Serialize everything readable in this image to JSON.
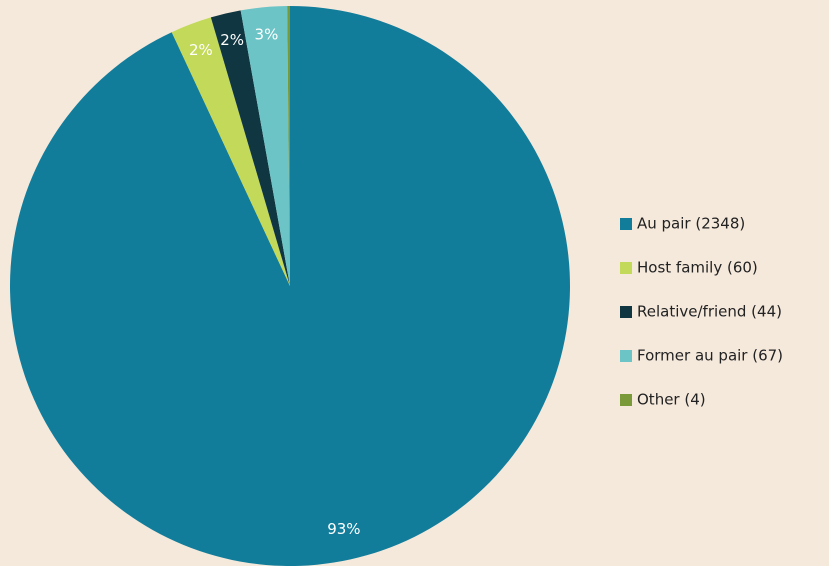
{
  "chart_data": {
    "type": "pie",
    "categories": [
      "Au pair (2348)",
      "Host family (60)",
      "Relative/friend (44)",
      "Former au pair (67)",
      "Other (4)"
    ],
    "values": [
      93.06,
      2.38,
      1.74,
      2.66,
      0.16
    ],
    "value_labels": [
      "93%",
      "2%",
      "2%",
      "3%",
      null
    ],
    "colors": [
      "#127d9b",
      "#c2d95a",
      "#0f3641",
      "#6cc4c6",
      "#7a9a3a"
    ],
    "legend": "right"
  }
}
